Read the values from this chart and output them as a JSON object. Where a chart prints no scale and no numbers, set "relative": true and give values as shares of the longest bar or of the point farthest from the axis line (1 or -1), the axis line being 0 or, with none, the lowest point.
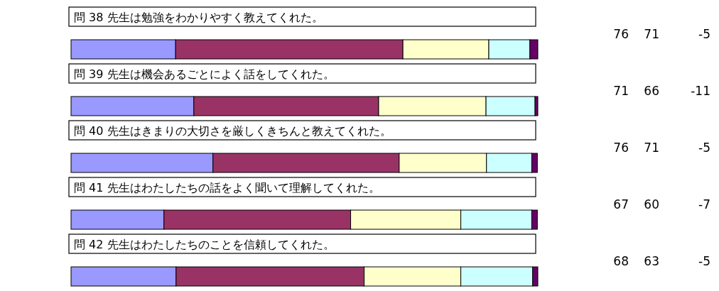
{
  "chart_data": {
    "type": "bar",
    "orientation": "horizontal",
    "stacked": true,
    "relative": true,
    "categories": [
      "問 38 先生は勉強をわかりやすく教えてくれた。",
      "問 39 先生は機会あるごとによく話をしてくれた。",
      "問 40 先生はきまりの大切さを厳しくきちんと教えてくれた。",
      "問 41 先生はわたしたちの話をよく聞いて理解してくれた。",
      "問 42 先生はわたしたちのことを信頼してくれた。"
    ],
    "series": [
      {
        "color": "#9999ff",
        "values": [
          0.224,
          0.263,
          0.304,
          0.199,
          0.225
        ]
      },
      {
        "color": "#993366",
        "values": [
          0.487,
          0.396,
          0.399,
          0.4,
          0.403
        ]
      },
      {
        "color": "#ffffcc",
        "values": [
          0.184,
          0.23,
          0.187,
          0.236,
          0.207
        ]
      },
      {
        "color": "#ccffff",
        "values": [
          0.088,
          0.105,
          0.097,
          0.152,
          0.154
        ]
      },
      {
        "color": "#660066",
        "values": [
          0.017,
          0.006,
          0.012,
          0.012,
          0.011
        ]
      }
    ],
    "annotations": [
      "76 71 -5",
      "71 66 -11",
      "76 71 -5",
      "67 60 -7",
      "68 63 -5"
    ]
  }
}
